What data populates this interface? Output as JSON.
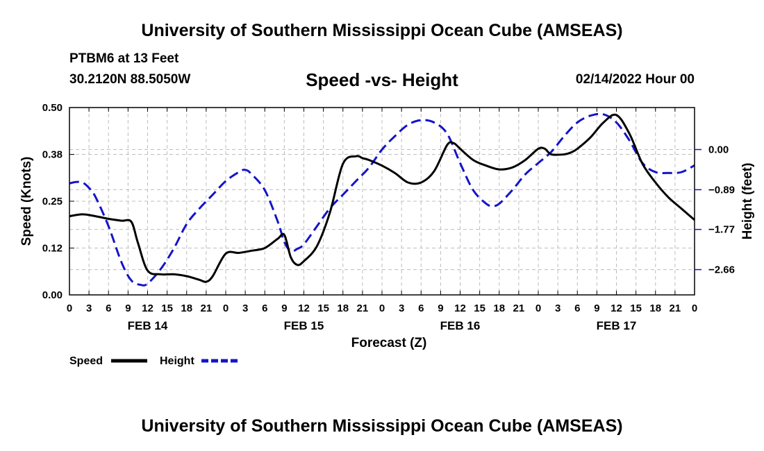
{
  "header": {
    "title": "University of Southern Mississippi Ocean Cube (AMSEAS)",
    "station": "PTBM6 at 13 Feet",
    "coords": "30.2120N   88.5050W",
    "subtitle": "Speed -vs- Height",
    "date": "02/14/2022 Hour 00"
  },
  "footer": {
    "title": "University of Southern Mississippi Ocean Cube (AMSEAS)"
  },
  "chart_data": {
    "type": "line",
    "title": "Speed -vs- Height",
    "xlabel": "Forecast (Z)",
    "ylabel": "Speed (Knots)",
    "y2label": "Height (feet)",
    "x_range": [
      0,
      96
    ],
    "ylim": [
      0,
      0.5
    ],
    "y2lim": [
      -3.22,
      0.93
    ],
    "x_ticks": [
      0,
      3,
      6,
      9,
      12,
      15,
      18,
      21,
      24,
      27,
      30,
      33,
      36,
      39,
      42,
      45,
      48,
      51,
      54,
      57,
      60,
      63,
      66,
      69,
      72,
      75,
      78,
      81,
      84,
      87,
      90,
      93,
      96
    ],
    "x_tick_labels": [
      "0",
      "3",
      "6",
      "9",
      "12",
      "15",
      "18",
      "21",
      "0",
      "3",
      "6",
      "9",
      "12",
      "15",
      "18",
      "21",
      "0",
      "3",
      "6",
      "9",
      "12",
      "15",
      "18",
      "21",
      "0",
      "3",
      "6",
      "9",
      "12",
      "15",
      "18",
      "21",
      "0"
    ],
    "day_labels": [
      {
        "x": 12,
        "label": "FEB 14"
      },
      {
        "x": 36,
        "label": "FEB 15"
      },
      {
        "x": 60,
        "label": "FEB 16"
      },
      {
        "x": 84,
        "label": "FEB 17"
      }
    ],
    "y_ticks": [
      0,
      0.125,
      0.25,
      0.375,
      0.5
    ],
    "y_tick_labels": [
      "0.00",
      "0.12",
      "0.25",
      "0.38",
      "0.50"
    ],
    "y2_ticks": [
      0,
      -0.89,
      -1.77,
      -2.66
    ],
    "y2_tick_labels": [
      "0.00",
      "−0.89",
      "−1.77",
      "−2.66"
    ],
    "grid": true,
    "legend": "bottom-left",
    "series": [
      {
        "name": "Speed",
        "color": "#000000",
        "dash": "solid",
        "axis": "left",
        "x": [
          0,
          2,
          4,
          6,
          8,
          9.5,
          10.5,
          12,
          14,
          16,
          18,
          20,
          21,
          22,
          24,
          26,
          28,
          30,
          32,
          33,
          34,
          35,
          36,
          38,
          40,
          42,
          44,
          45,
          46,
          48,
          50,
          52,
          54,
          56,
          58,
          59,
          60,
          62,
          64,
          66,
          68,
          70,
          72,
          73,
          74,
          76,
          77,
          78,
          80,
          82,
          84,
          86,
          88,
          90,
          92,
          94,
          96
        ],
        "values": [
          0.21,
          0.215,
          0.21,
          0.203,
          0.198,
          0.195,
          0.14,
          0.065,
          0.055,
          0.055,
          0.05,
          0.04,
          0.035,
          0.05,
          0.11,
          0.112,
          0.118,
          0.125,
          0.15,
          0.16,
          0.1,
          0.08,
          0.09,
          0.13,
          0.22,
          0.35,
          0.37,
          0.365,
          0.36,
          0.345,
          0.325,
          0.3,
          0.3,
          0.33,
          0.4,
          0.405,
          0.39,
          0.36,
          0.345,
          0.335,
          0.34,
          0.36,
          0.39,
          0.39,
          0.375,
          0.375,
          0.38,
          0.39,
          0.42,
          0.46,
          0.48,
          0.43,
          0.35,
          0.3,
          0.26,
          0.23,
          0.2
        ]
      },
      {
        "name": "Height",
        "color": "#1414c8",
        "dash": "dashed",
        "axis": "right",
        "x": [
          0,
          1,
          2,
          3,
          4,
          6,
          8,
          9.5,
          11,
          12,
          14,
          16,
          18,
          20,
          22,
          24,
          26,
          27,
          28,
          30,
          32,
          33,
          34,
          35,
          36,
          38,
          40,
          42,
          44,
          46,
          48,
          50,
          52,
          54,
          56,
          58,
          60,
          62,
          64,
          65,
          66,
          68,
          70,
          72,
          74,
          76,
          78,
          80,
          82,
          84,
          86,
          88,
          90,
          92,
          94,
          96
        ],
        "values": [
          -0.75,
          -0.72,
          -0.73,
          -0.85,
          -1.05,
          -1.7,
          -2.5,
          -2.9,
          -3.0,
          -2.97,
          -2.65,
          -2.2,
          -1.65,
          -1.3,
          -1.0,
          -0.7,
          -0.5,
          -0.45,
          -0.55,
          -0.9,
          -1.6,
          -2.05,
          -2.25,
          -2.2,
          -2.1,
          -1.7,
          -1.3,
          -1.0,
          -0.7,
          -0.4,
          0.0,
          0.3,
          0.55,
          0.65,
          0.6,
          0.35,
          -0.3,
          -0.9,
          -1.2,
          -1.25,
          -1.2,
          -0.9,
          -0.55,
          -0.3,
          -0.05,
          0.3,
          0.6,
          0.75,
          0.78,
          0.6,
          0.2,
          -0.3,
          -0.5,
          -0.52,
          -0.5,
          -0.35
        ]
      }
    ]
  }
}
